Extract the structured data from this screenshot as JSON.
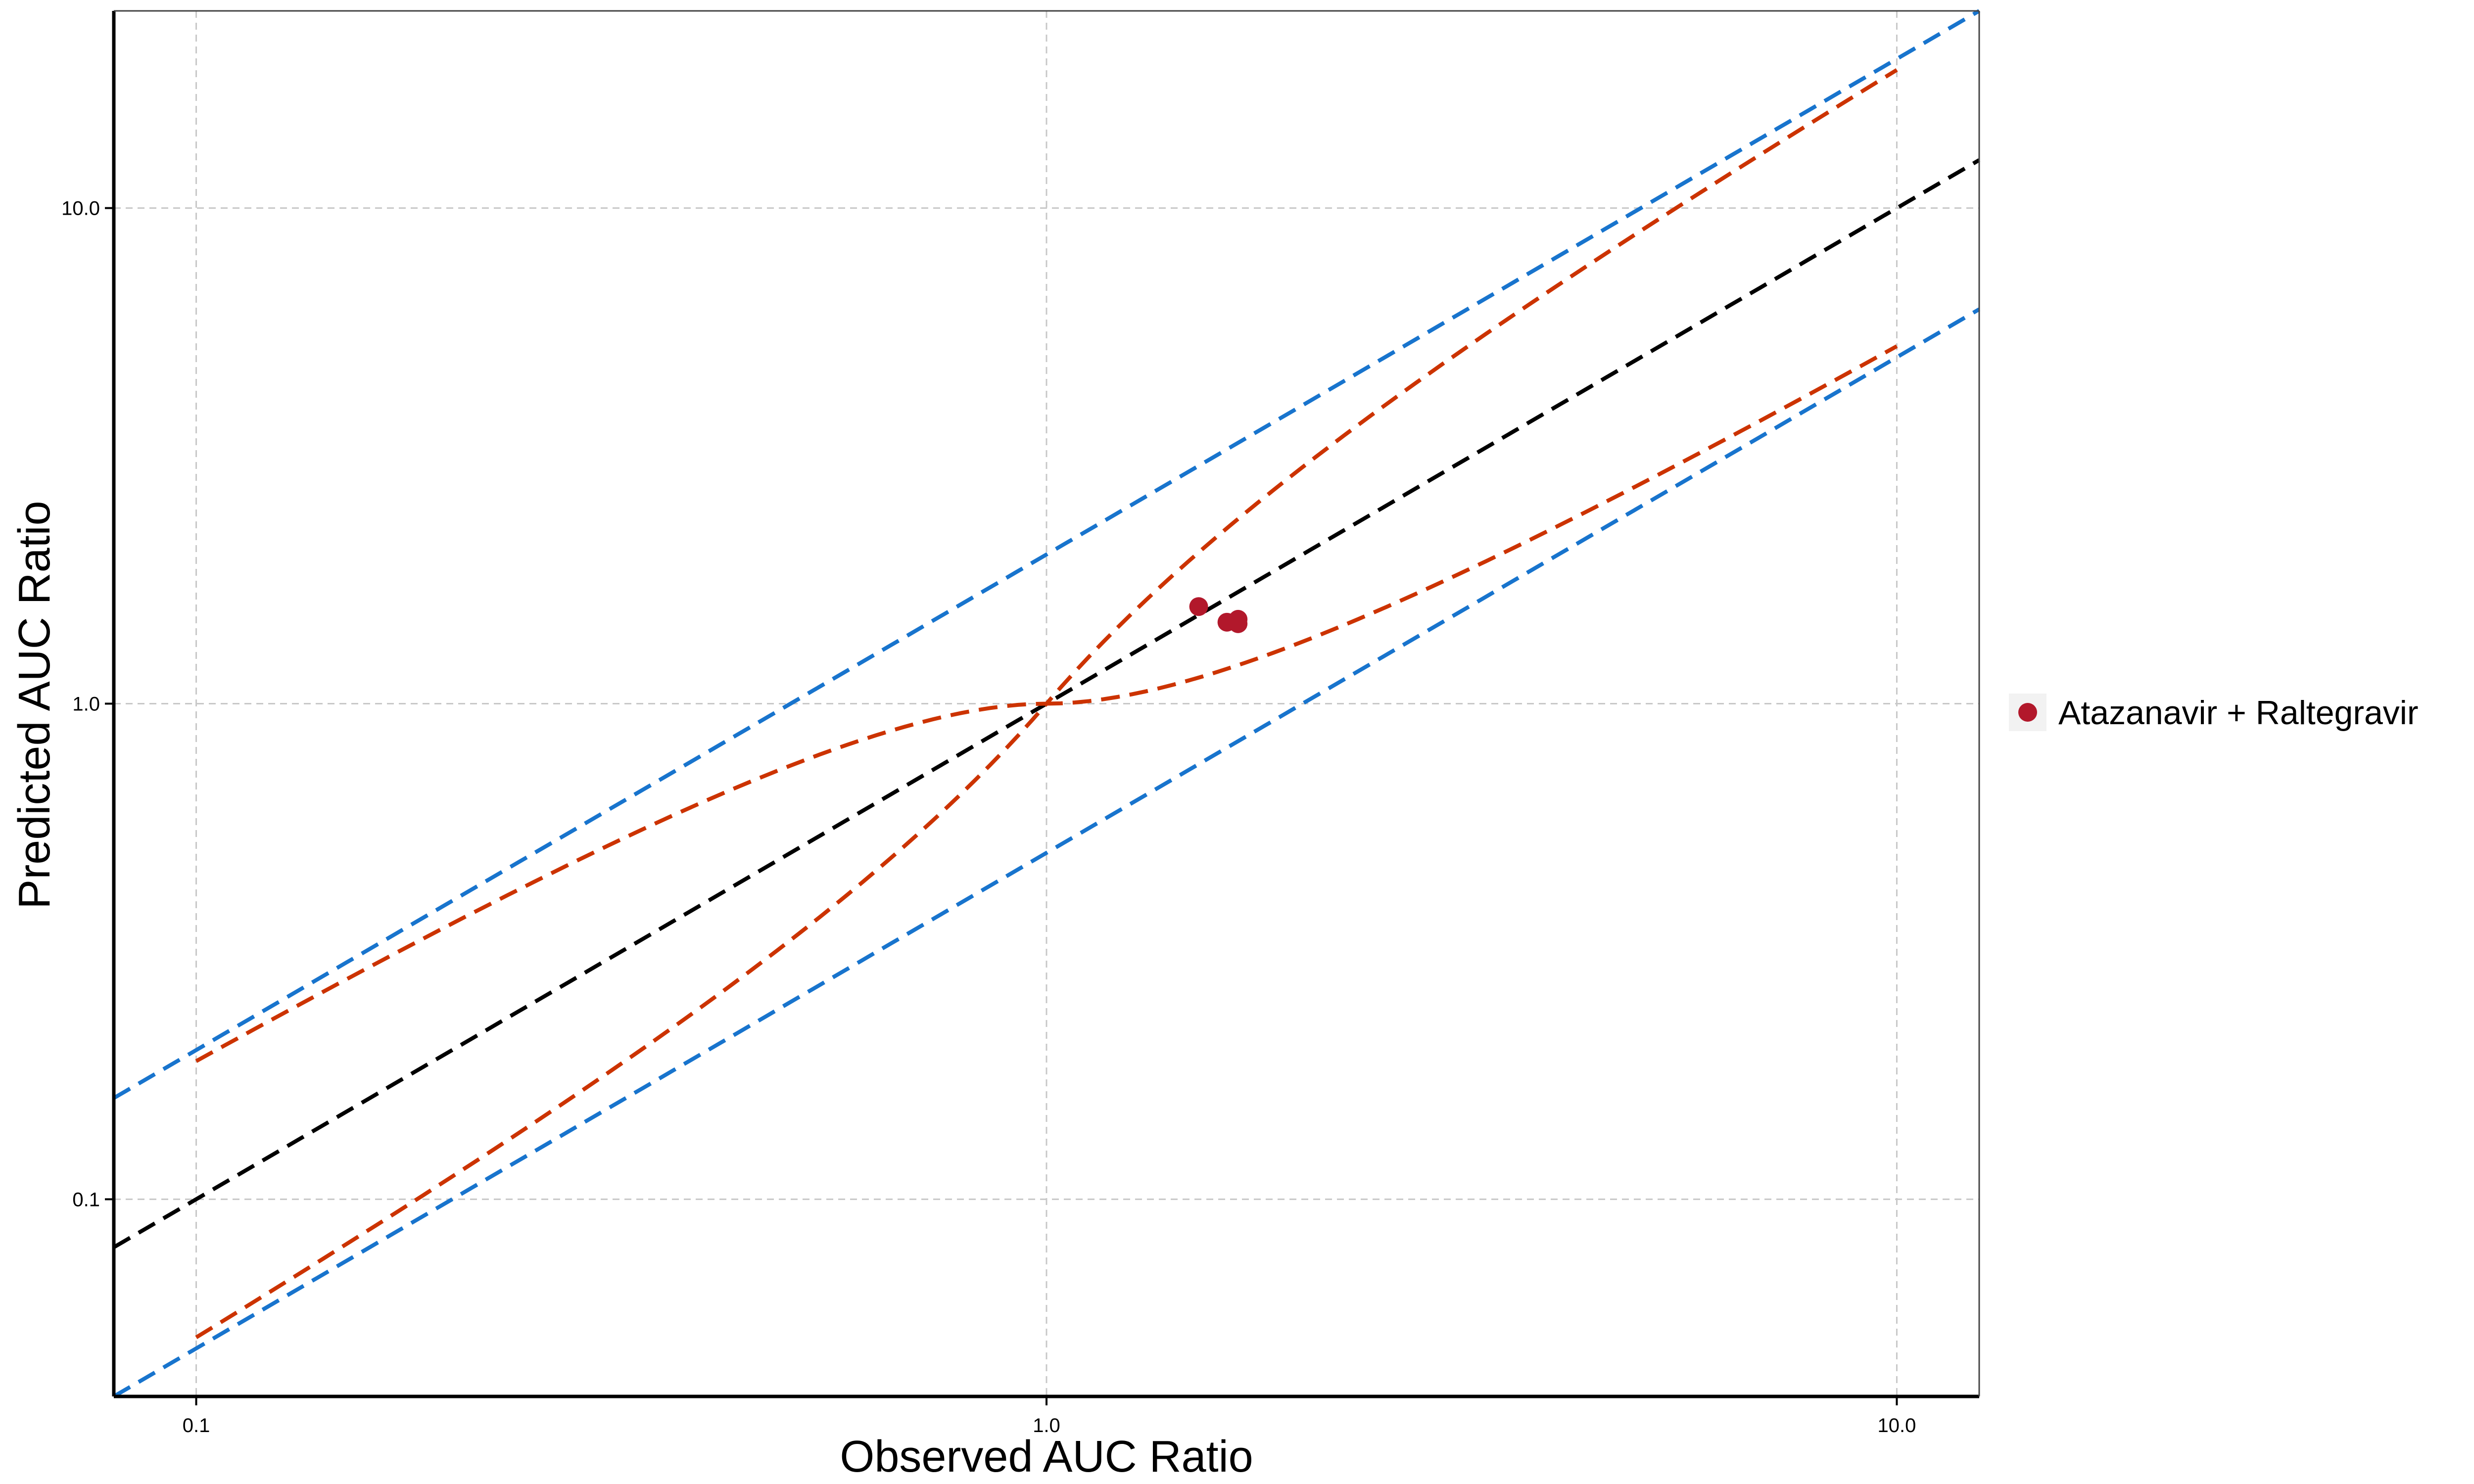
{
  "chart_data": {
    "type": "scatter",
    "title": "",
    "xlabel": "Observed AUC Ratio",
    "ylabel": "Predicted AUC Ratio",
    "xscale": "log",
    "yscale": "log",
    "xlim": [
      0.08,
      12.5
    ],
    "ylim": [
      0.04,
      25
    ],
    "xticks": [
      0.1,
      1.0,
      10.0
    ],
    "xtick_labels": [
      "0.1",
      "1.0",
      "10.0"
    ],
    "yticks": [
      0.1,
      1.0,
      10.0
    ],
    "ytick_labels": [
      "0.1",
      "1.0",
      "10.0"
    ],
    "grid": true,
    "legend_position": "right",
    "series": [
      {
        "name": "Atazanavir + Raltegravir",
        "color": "#b2182b",
        "points": [
          {
            "x": 1.51,
            "y": 1.57
          },
          {
            "x": 1.63,
            "y": 1.46
          },
          {
            "x": 1.68,
            "y": 1.48
          },
          {
            "x": 1.68,
            "y": 1.45
          }
        ]
      }
    ],
    "reference_lines": [
      {
        "kind": "identity",
        "color": "#000000",
        "style": "dashed",
        "description": "y = x"
      },
      {
        "kind": "twofold",
        "color": "#1874cd",
        "style": "dashed",
        "description": "y = 2x and y = x/2"
      },
      {
        "kind": "guest_limits",
        "color": "#cc3300",
        "style": "dashed",
        "delta": 1,
        "xrange": [
          0.1,
          10
        ]
      }
    ]
  }
}
